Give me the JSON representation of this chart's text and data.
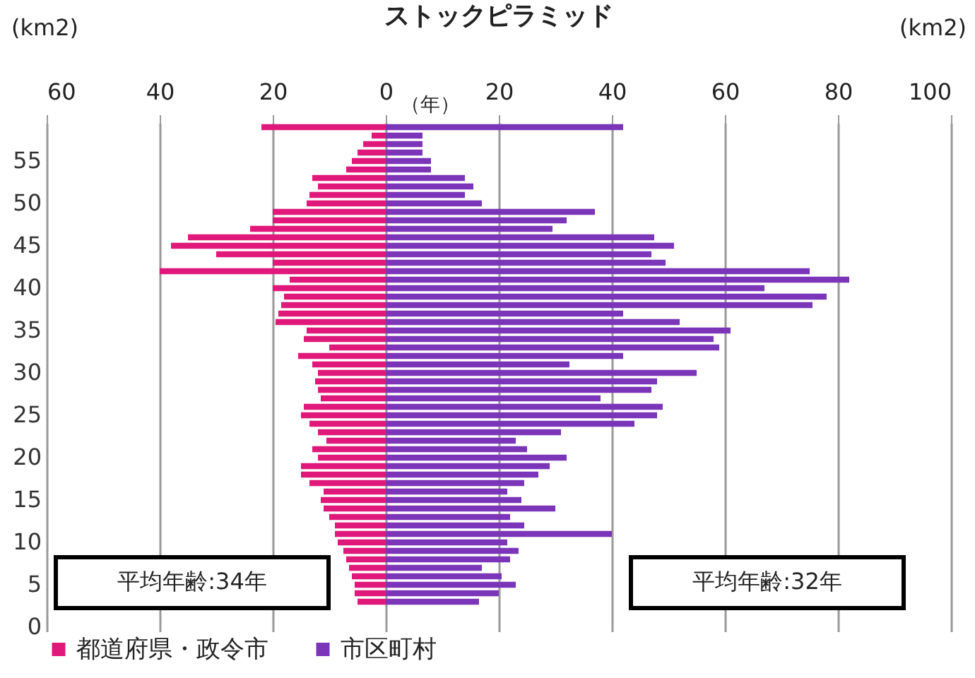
{
  "chart_data": {
    "type": "bar",
    "orientation": "horizontal",
    "title": "ストックピラミッド",
    "ylabel": "（年）",
    "categories": [
      null,
      null,
      null,
      null,
      "55",
      null,
      null,
      null,
      null,
      "50",
      null,
      null,
      null,
      null,
      "45",
      null,
      null,
      null,
      null,
      "40",
      null,
      null,
      null,
      null,
      "35",
      null,
      null,
      null,
      null,
      "30",
      null,
      null,
      null,
      null,
      "25",
      null,
      null,
      null,
      null,
      "20",
      null,
      null,
      null,
      null,
      "15",
      null,
      null,
      null,
      null,
      "10",
      null,
      null,
      null,
      null,
      "5",
      null,
      null,
      null,
      null,
      "0"
    ],
    "series": [
      {
        "name": "都道府県・政令市",
        "color": "#e0187a",
        "values": [
          -22,
          -2.5,
          -4,
          -5,
          -6,
          -7,
          -13,
          -12,
          -13.5,
          -14,
          -20,
          -20,
          -24,
          -35,
          -38,
          -30,
          -20,
          -40,
          -17,
          -20,
          -18,
          -18.5,
          -19,
          -19.5,
          -14,
          -14.5,
          -10,
          -15.5,
          -13,
          -12,
          -12.5,
          -12,
          -11.5,
          -14.5,
          -15,
          -13.5,
          -12,
          -10.5,
          -13,
          -12,
          -15,
          -15,
          -13.5,
          -11,
          -11.5,
          -11,
          -10,
          -9,
          -9,
          -8.5,
          -7.5,
          -7,
          -6.5,
          -6,
          -5.5,
          -5.5,
          -5,
          null,
          null,
          null
        ]
      },
      {
        "name": "市区町村",
        "color": "#7a35b8",
        "values": [
          42,
          6.5,
          6.5,
          6.5,
          8,
          8,
          14,
          15.5,
          14,
          17,
          37,
          32,
          29.5,
          47.5,
          51,
          47,
          49.5,
          75,
          82,
          67,
          78,
          75.5,
          42,
          52,
          61,
          58,
          59,
          42,
          32.5,
          55,
          48,
          47,
          38,
          49,
          48,
          44,
          31,
          23,
          25,
          32,
          29,
          27,
          24.5,
          21.5,
          24,
          30,
          22,
          24.5,
          40,
          21.5,
          23.5,
          22,
          17,
          20.5,
          23,
          20,
          16.5,
          null,
          null,
          null
        ]
      }
    ],
    "xlim": [
      -60,
      100
    ],
    "xticks": [
      {
        "value": -60,
        "label": "60"
      },
      {
        "value": -40,
        "label": "40"
      },
      {
        "value": -20,
        "label": "20"
      },
      0,
      20,
      40,
      60,
      80,
      100
    ],
    "grid": "x",
    "legend": "bottom",
    "stacked": true,
    "annotations": [
      "(km2)",
      "(km2)",
      "平均年齢:34年",
      "平均年齢:32年"
    ]
  }
}
